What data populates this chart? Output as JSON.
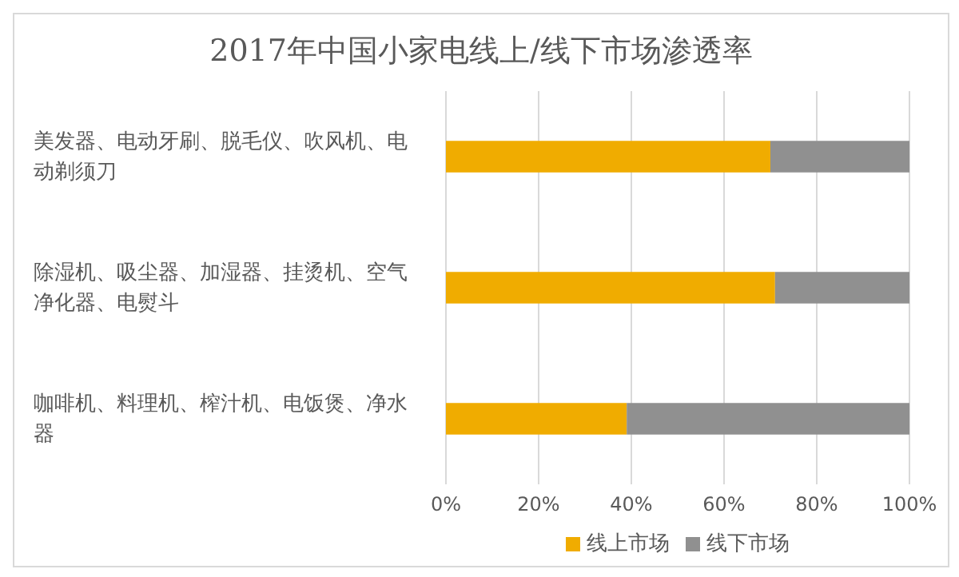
{
  "chart_data": {
    "type": "bar",
    "orientation": "horizontal",
    "stacked": true,
    "title": "2017年中国小家电线上/线下市场渗透率",
    "categories": [
      "美发器、电动牙刷、脱毛仪、吹风机、电动剃须刀",
      "除湿机、吸尘器、加湿器、挂烫机、空气净化器、电熨斗",
      "咖啡机、料理机、榨汁机、电饭煲、净水器"
    ],
    "series": [
      {
        "name": "线上市场",
        "color": "#f0ac00",
        "values": [
          70,
          71,
          39
        ]
      },
      {
        "name": "线下市场",
        "color": "#909090",
        "values": [
          30,
          29,
          61
        ]
      }
    ],
    "xlim": [
      0,
      100
    ],
    "xticks": [
      {
        "value": 0,
        "label": "0%"
      },
      {
        "value": 20,
        "label": "20%"
      },
      {
        "value": 40,
        "label": "40%"
      },
      {
        "value": 60,
        "label": "60%"
      },
      {
        "value": 80,
        "label": "80%"
      },
      {
        "value": 100,
        "label": "100%"
      }
    ],
    "grid": "x",
    "legend": "bottom"
  }
}
